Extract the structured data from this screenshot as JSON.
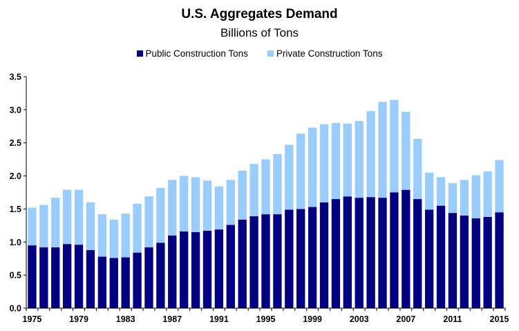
{
  "colors": {
    "public": "#000080",
    "private": "#99CCFF",
    "axis": "#000000"
  },
  "chart_data": {
    "type": "bar",
    "stacked": true,
    "title": "U.S. Aggregates Demand",
    "subtitle": "Billions of Tons",
    "xlabel": "",
    "ylabel": "",
    "ylim": [
      0,
      3.5
    ],
    "yticks": [
      "0.0",
      "0.5",
      "1.0",
      "1.5",
      "2.0",
      "2.5",
      "3.0",
      "3.5"
    ],
    "legend_position": "top-center",
    "categories": [
      1975,
      1976,
      1977,
      1978,
      1979,
      1980,
      1981,
      1982,
      1983,
      1984,
      1985,
      1986,
      1987,
      1988,
      1989,
      1990,
      1991,
      1992,
      1993,
      1994,
      1995,
      1996,
      1997,
      1998,
      1999,
      2000,
      2001,
      2002,
      2003,
      2004,
      2005,
      2006,
      2007,
      2008,
      2009,
      2010,
      2011,
      2012,
      2013,
      2014,
      2015
    ],
    "xtick_labels": [
      "1975",
      "1979",
      "1983",
      "1987",
      "1991",
      "1995",
      "1999",
      "2003",
      "2007",
      "2011",
      "2015"
    ],
    "series": [
      {
        "name": "Public Construction Tons",
        "values": [
          0.95,
          0.92,
          0.92,
          0.97,
          0.96,
          0.88,
          0.78,
          0.76,
          0.77,
          0.84,
          0.92,
          0.99,
          1.1,
          1.16,
          1.15,
          1.17,
          1.19,
          1.26,
          1.34,
          1.39,
          1.42,
          1.42,
          1.49,
          1.5,
          1.53,
          1.6,
          1.65,
          1.69,
          1.67,
          1.68,
          1.67,
          1.75,
          1.79,
          1.65,
          1.49,
          1.55,
          1.44,
          1.4,
          1.36,
          1.38,
          1.45
        ]
      },
      {
        "name": "Private Construction Tons",
        "values": [
          0.57,
          0.64,
          0.75,
          0.82,
          0.83,
          0.72,
          0.64,
          0.58,
          0.66,
          0.74,
          0.77,
          0.83,
          0.84,
          0.84,
          0.83,
          0.76,
          0.65,
          0.68,
          0.74,
          0.79,
          0.83,
          0.91,
          0.98,
          1.14,
          1.2,
          1.18,
          1.15,
          1.1,
          1.16,
          1.3,
          1.45,
          1.4,
          1.18,
          0.91,
          0.56,
          0.43,
          0.45,
          0.54,
          0.65,
          0.69,
          0.79
        ]
      }
    ]
  }
}
